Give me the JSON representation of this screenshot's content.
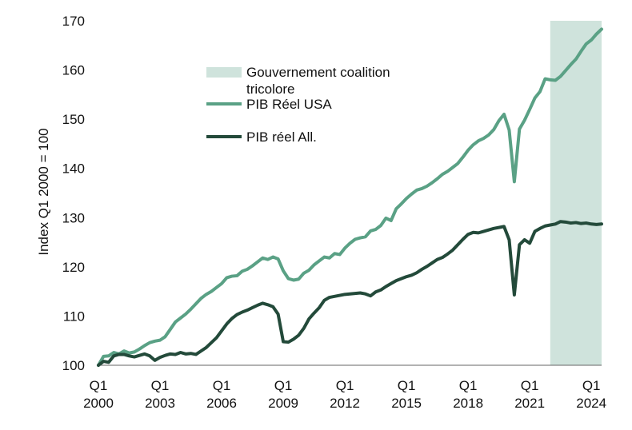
{
  "chart_data": {
    "type": "line",
    "title": "",
    "xlabel": "",
    "ylabel": "Index Q1 2000 = 100",
    "ylim": [
      100,
      170
    ],
    "yticks": [
      100,
      110,
      120,
      130,
      140,
      150,
      160,
      170
    ],
    "xlim_quarters": [
      0,
      98
    ],
    "xticks": [
      {
        "q": 0,
        "line1": "Q1",
        "line2": "2000"
      },
      {
        "q": 12,
        "line1": "Q1",
        "line2": "2003"
      },
      {
        "q": 24,
        "line1": "Q1",
        "line2": "2006"
      },
      {
        "q": 36,
        "line1": "Q1",
        "line2": "2009"
      },
      {
        "q": 48,
        "line1": "Q1",
        "line2": "2012"
      },
      {
        "q": 60,
        "line1": "Q1",
        "line2": "2015"
      },
      {
        "q": 72,
        "line1": "Q1",
        "line2": "2018"
      },
      {
        "q": 84,
        "line1": "Q1",
        "line2": "2021"
      },
      {
        "q": 96,
        "line1": "Q1",
        "line2": "2024"
      }
    ],
    "shaded_region": {
      "label": "Gouvernement coalition tricolore",
      "from_quarter": 88,
      "to_quarter": 98,
      "color": "#cfe3dc"
    },
    "grid": false,
    "legend_position": "top-left",
    "series": [
      {
        "name": "PIB Réel USA",
        "color": "#5aa185",
        "values": [
          100.0,
          101.8,
          101.9,
          102.6,
          102.3,
          102.9,
          102.5,
          102.7,
          103.3,
          104.0,
          104.6,
          104.9,
          105.1,
          105.8,
          107.3,
          108.8,
          109.6,
          110.4,
          111.4,
          112.5,
          113.6,
          114.4,
          115.0,
          115.8,
          116.6,
          117.8,
          118.1,
          118.2,
          119.1,
          119.5,
          120.2,
          121.0,
          121.8,
          121.5,
          122.0,
          121.6,
          119.2,
          117.6,
          117.3,
          117.5,
          118.7,
          119.3,
          120.4,
          121.2,
          122.0,
          121.8,
          122.7,
          122.5,
          123.8,
          124.8,
          125.6,
          125.9,
          126.1,
          127.3,
          127.6,
          128.4,
          129.9,
          129.4,
          131.8,
          132.8,
          133.9,
          134.8,
          135.6,
          135.9,
          136.4,
          137.1,
          137.9,
          138.8,
          139.4,
          140.2,
          141.0,
          142.3,
          143.7,
          144.8,
          145.6,
          146.1,
          146.8,
          147.9,
          149.7,
          151.0,
          147.8,
          137.3,
          148.0,
          149.8,
          152.0,
          154.3,
          155.6,
          158.2,
          158.0,
          157.9,
          158.7,
          159.9,
          161.1,
          162.2,
          163.8,
          165.3,
          166.1,
          167.3,
          168.3
        ]
      },
      {
        "name": "PIB réel All.",
        "color": "#234a3a",
        "values": [
          100.0,
          100.8,
          100.6,
          101.9,
          102.2,
          102.2,
          101.9,
          101.7,
          102.0,
          102.3,
          101.9,
          101.0,
          101.6,
          102.0,
          102.3,
          102.2,
          102.6,
          102.3,
          102.4,
          102.2,
          102.9,
          103.6,
          104.6,
          105.6,
          107.0,
          108.4,
          109.5,
          110.3,
          110.8,
          111.2,
          111.7,
          112.2,
          112.6,
          112.3,
          111.9,
          110.4,
          104.8,
          104.7,
          105.3,
          106.1,
          107.5,
          109.4,
          110.6,
          111.7,
          113.2,
          113.8,
          114.0,
          114.2,
          114.4,
          114.5,
          114.6,
          114.7,
          114.5,
          114.1,
          114.9,
          115.3,
          116.0,
          116.6,
          117.2,
          117.6,
          118.0,
          118.3,
          118.8,
          119.5,
          120.1,
          120.8,
          121.5,
          121.9,
          122.6,
          123.4,
          124.5,
          125.6,
          126.6,
          127.0,
          126.9,
          127.2,
          127.5,
          127.8,
          128.0,
          128.2,
          125.5,
          114.3,
          124.5,
          125.5,
          124.8,
          127.2,
          127.8,
          128.3,
          128.5,
          128.7,
          129.2,
          129.1,
          128.9,
          129.0,
          128.8,
          128.9,
          128.7,
          128.6,
          128.7
        ]
      }
    ]
  }
}
